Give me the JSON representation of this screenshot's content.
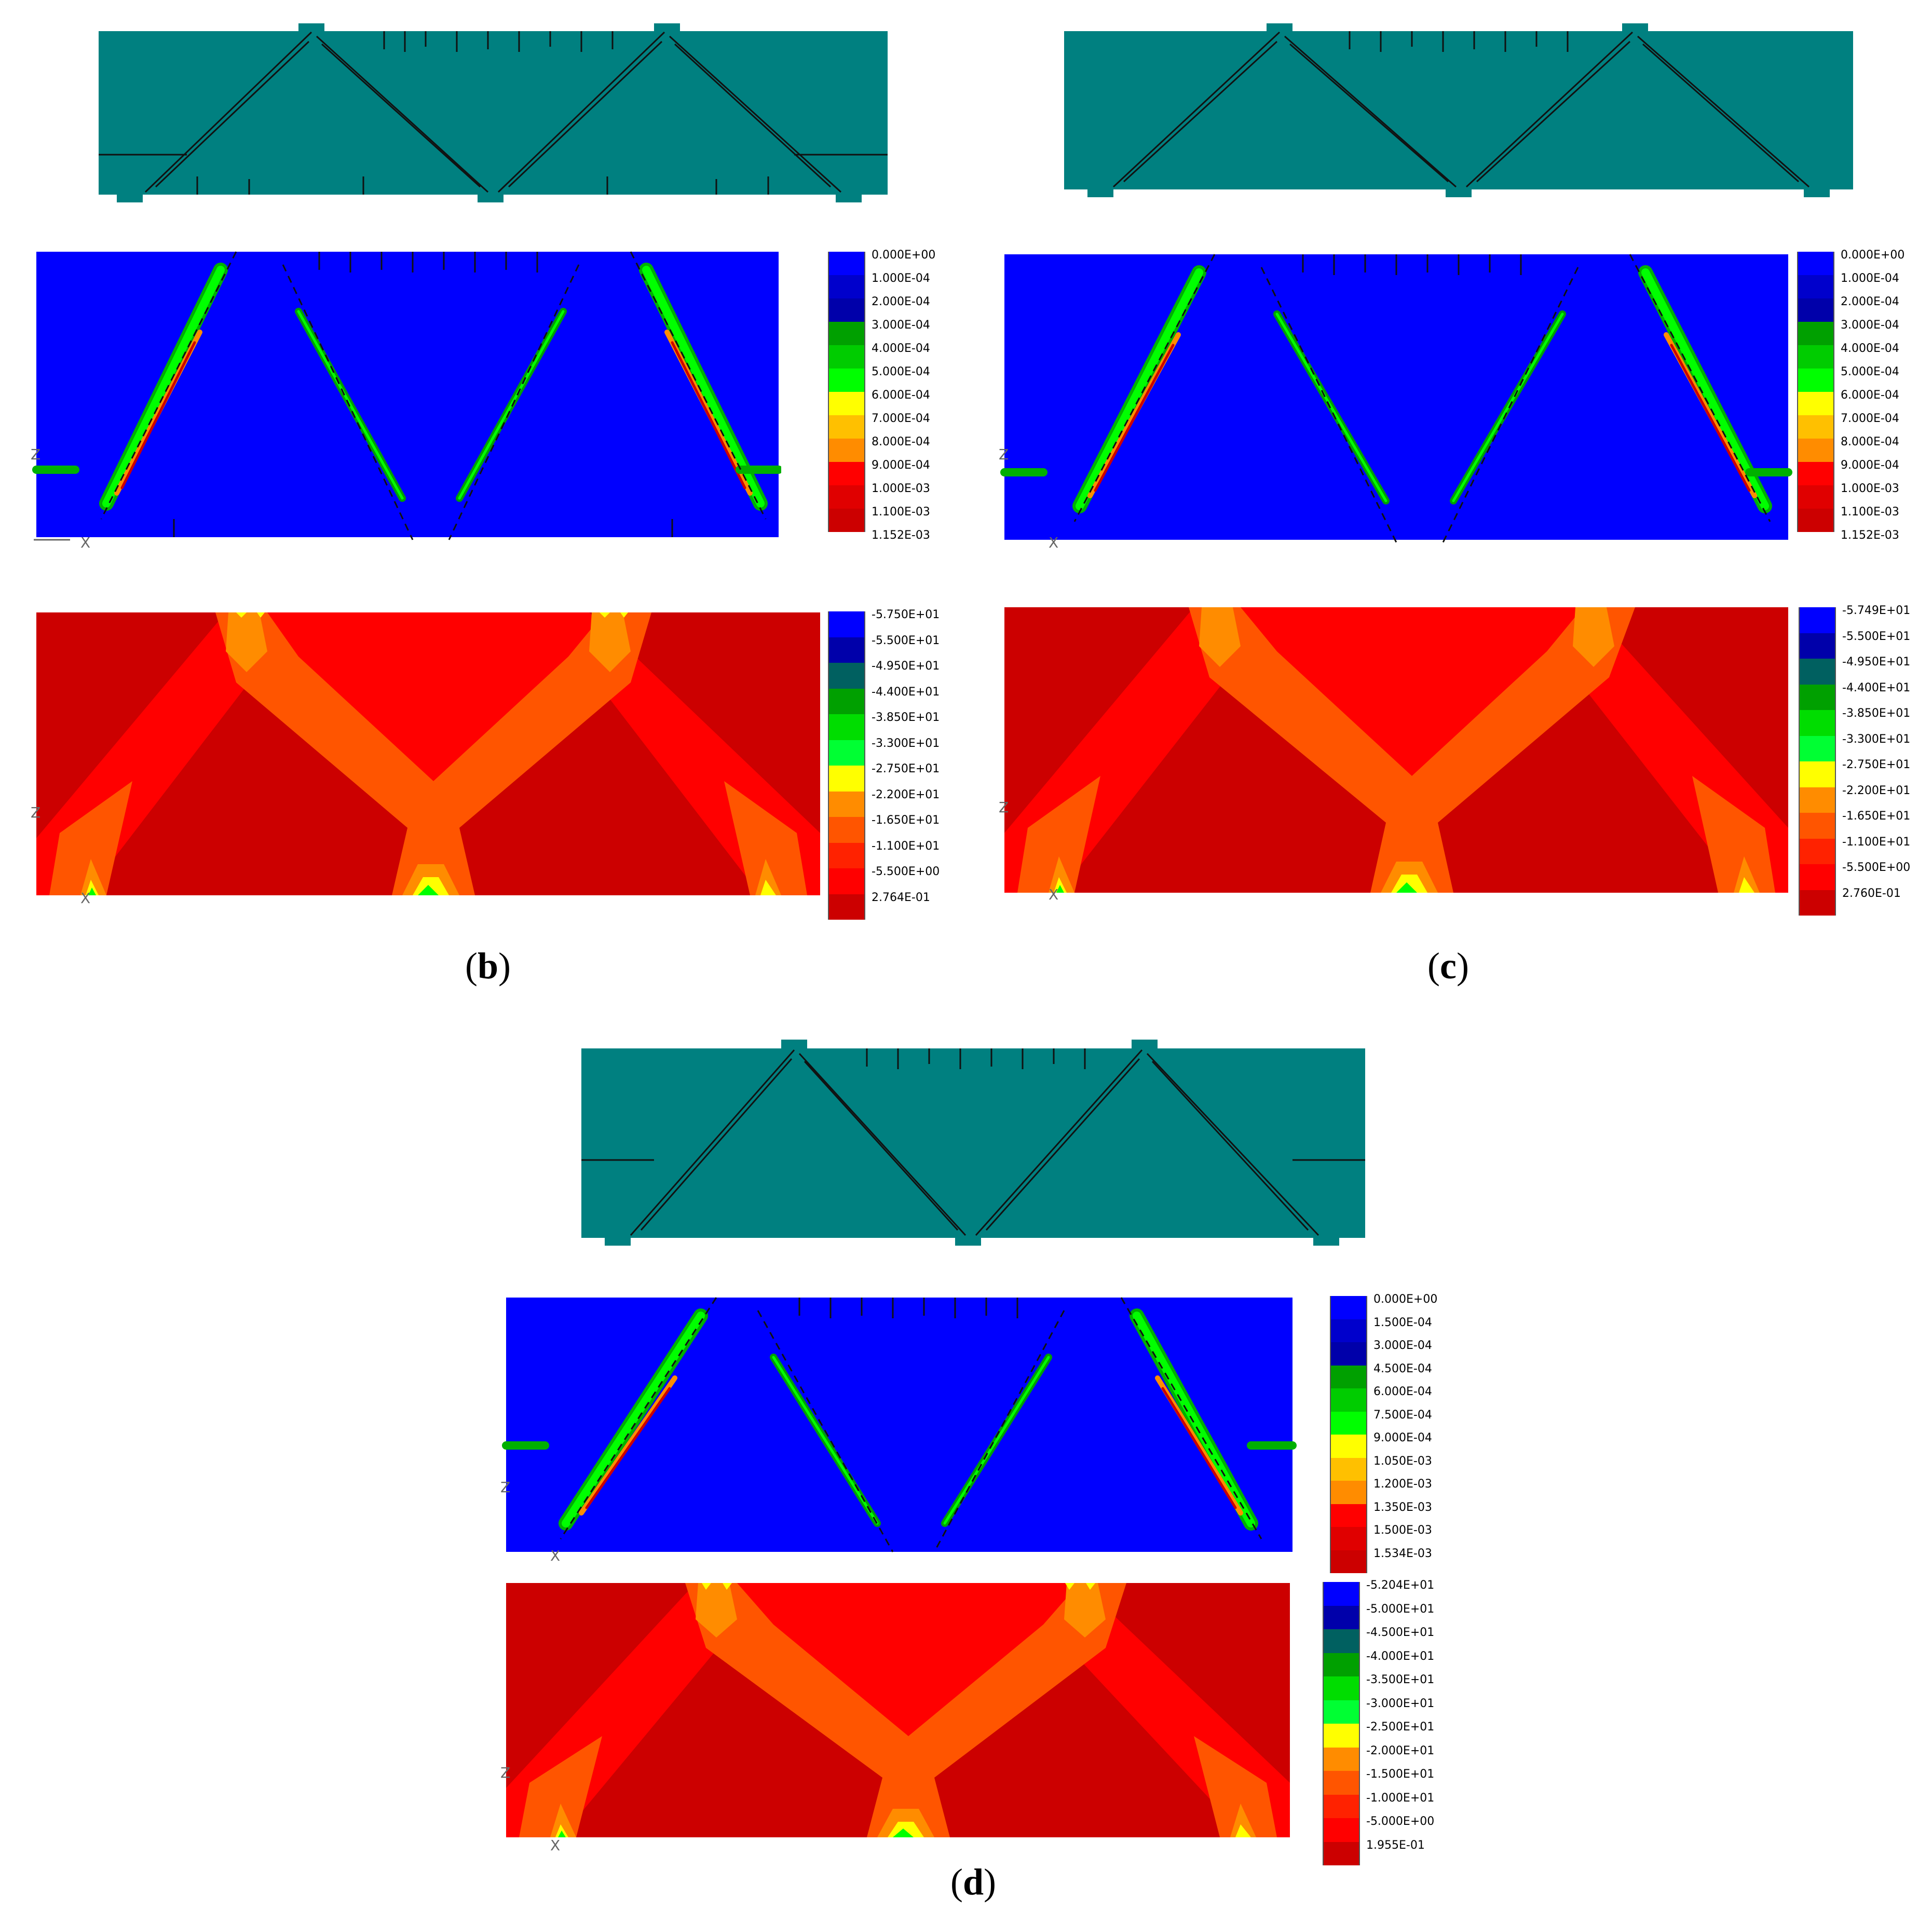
{
  "panels": {
    "b": {
      "label_letter": "b",
      "strain_legend": [
        "0.000E+00",
        "1.000E-04",
        "2.000E-04",
        "3.000E-04",
        "4.000E-04",
        "5.000E-04",
        "6.000E-04",
        "7.000E-04",
        "8.000E-04",
        "9.000E-04",
        "1.000E-03",
        "1.100E-03",
        "1.152E-03"
      ],
      "stress_legend": [
        "-5.750E+01",
        "-5.500E+01",
        "-4.950E+01",
        "-4.400E+01",
        "-3.850E+01",
        "-3.300E+01",
        "-2.750E+01",
        "-2.200E+01",
        "-1.650E+01",
        "-1.100E+01",
        "-5.500E+00",
        "2.764E-01"
      ]
    },
    "c": {
      "label_letter": "c",
      "strain_legend": [
        "0.000E+00",
        "1.000E-04",
        "2.000E-04",
        "3.000E-04",
        "4.000E-04",
        "5.000E-04",
        "6.000E-04",
        "7.000E-04",
        "8.000E-04",
        "9.000E-04",
        "1.000E-03",
        "1.100E-03",
        "1.152E-03"
      ],
      "stress_legend": [
        "-5.749E+01",
        "-5.500E+01",
        "-4.950E+01",
        "-4.400E+01",
        "-3.850E+01",
        "-3.300E+01",
        "-2.750E+01",
        "-2.200E+01",
        "-1.650E+01",
        "-1.100E+01",
        "-5.500E+00",
        "2.760E-01"
      ]
    },
    "d": {
      "label_letter": "d",
      "strain_legend": [
        "0.000E+00",
        "1.500E-04",
        "3.000E-04",
        "4.500E-04",
        "6.000E-04",
        "7.500E-04",
        "9.000E-04",
        "1.050E-03",
        "1.200E-03",
        "1.350E-03",
        "1.500E-03",
        "1.534E-03"
      ],
      "stress_legend": [
        "-5.204E+01",
        "-5.000E+01",
        "-4.500E+01",
        "-4.000E+01",
        "-3.500E+01",
        "-3.000E+01",
        "-2.500E+01",
        "-2.000E+01",
        "-1.500E+01",
        "-1.000E+01",
        "-5.000E+00",
        "1.955E-01"
      ]
    }
  },
  "axis_labels": {
    "x": "X",
    "z": "Z"
  },
  "colors": {
    "beam_teal": "#008080",
    "strain_bg": "#0000ff",
    "stress_bg": "#cc0000",
    "crack": "#111111",
    "strain_scale": [
      "#0000ff",
      "#0000cc",
      "#0000aa",
      "#00a000",
      "#00cc00",
      "#00ff00",
      "#ffff00",
      "#ffc000",
      "#ff8c00",
      "#ff0000",
      "#e00000",
      "#cc0000"
    ],
    "stress_scale": [
      "#0000ff",
      "#0000aa",
      "#006060",
      "#00a000",
      "#00dd00",
      "#00ff33",
      "#ffff00",
      "#ff8c00",
      "#ff5500",
      "#ff2200",
      "#ff0000",
      "#cc0000"
    ]
  }
}
